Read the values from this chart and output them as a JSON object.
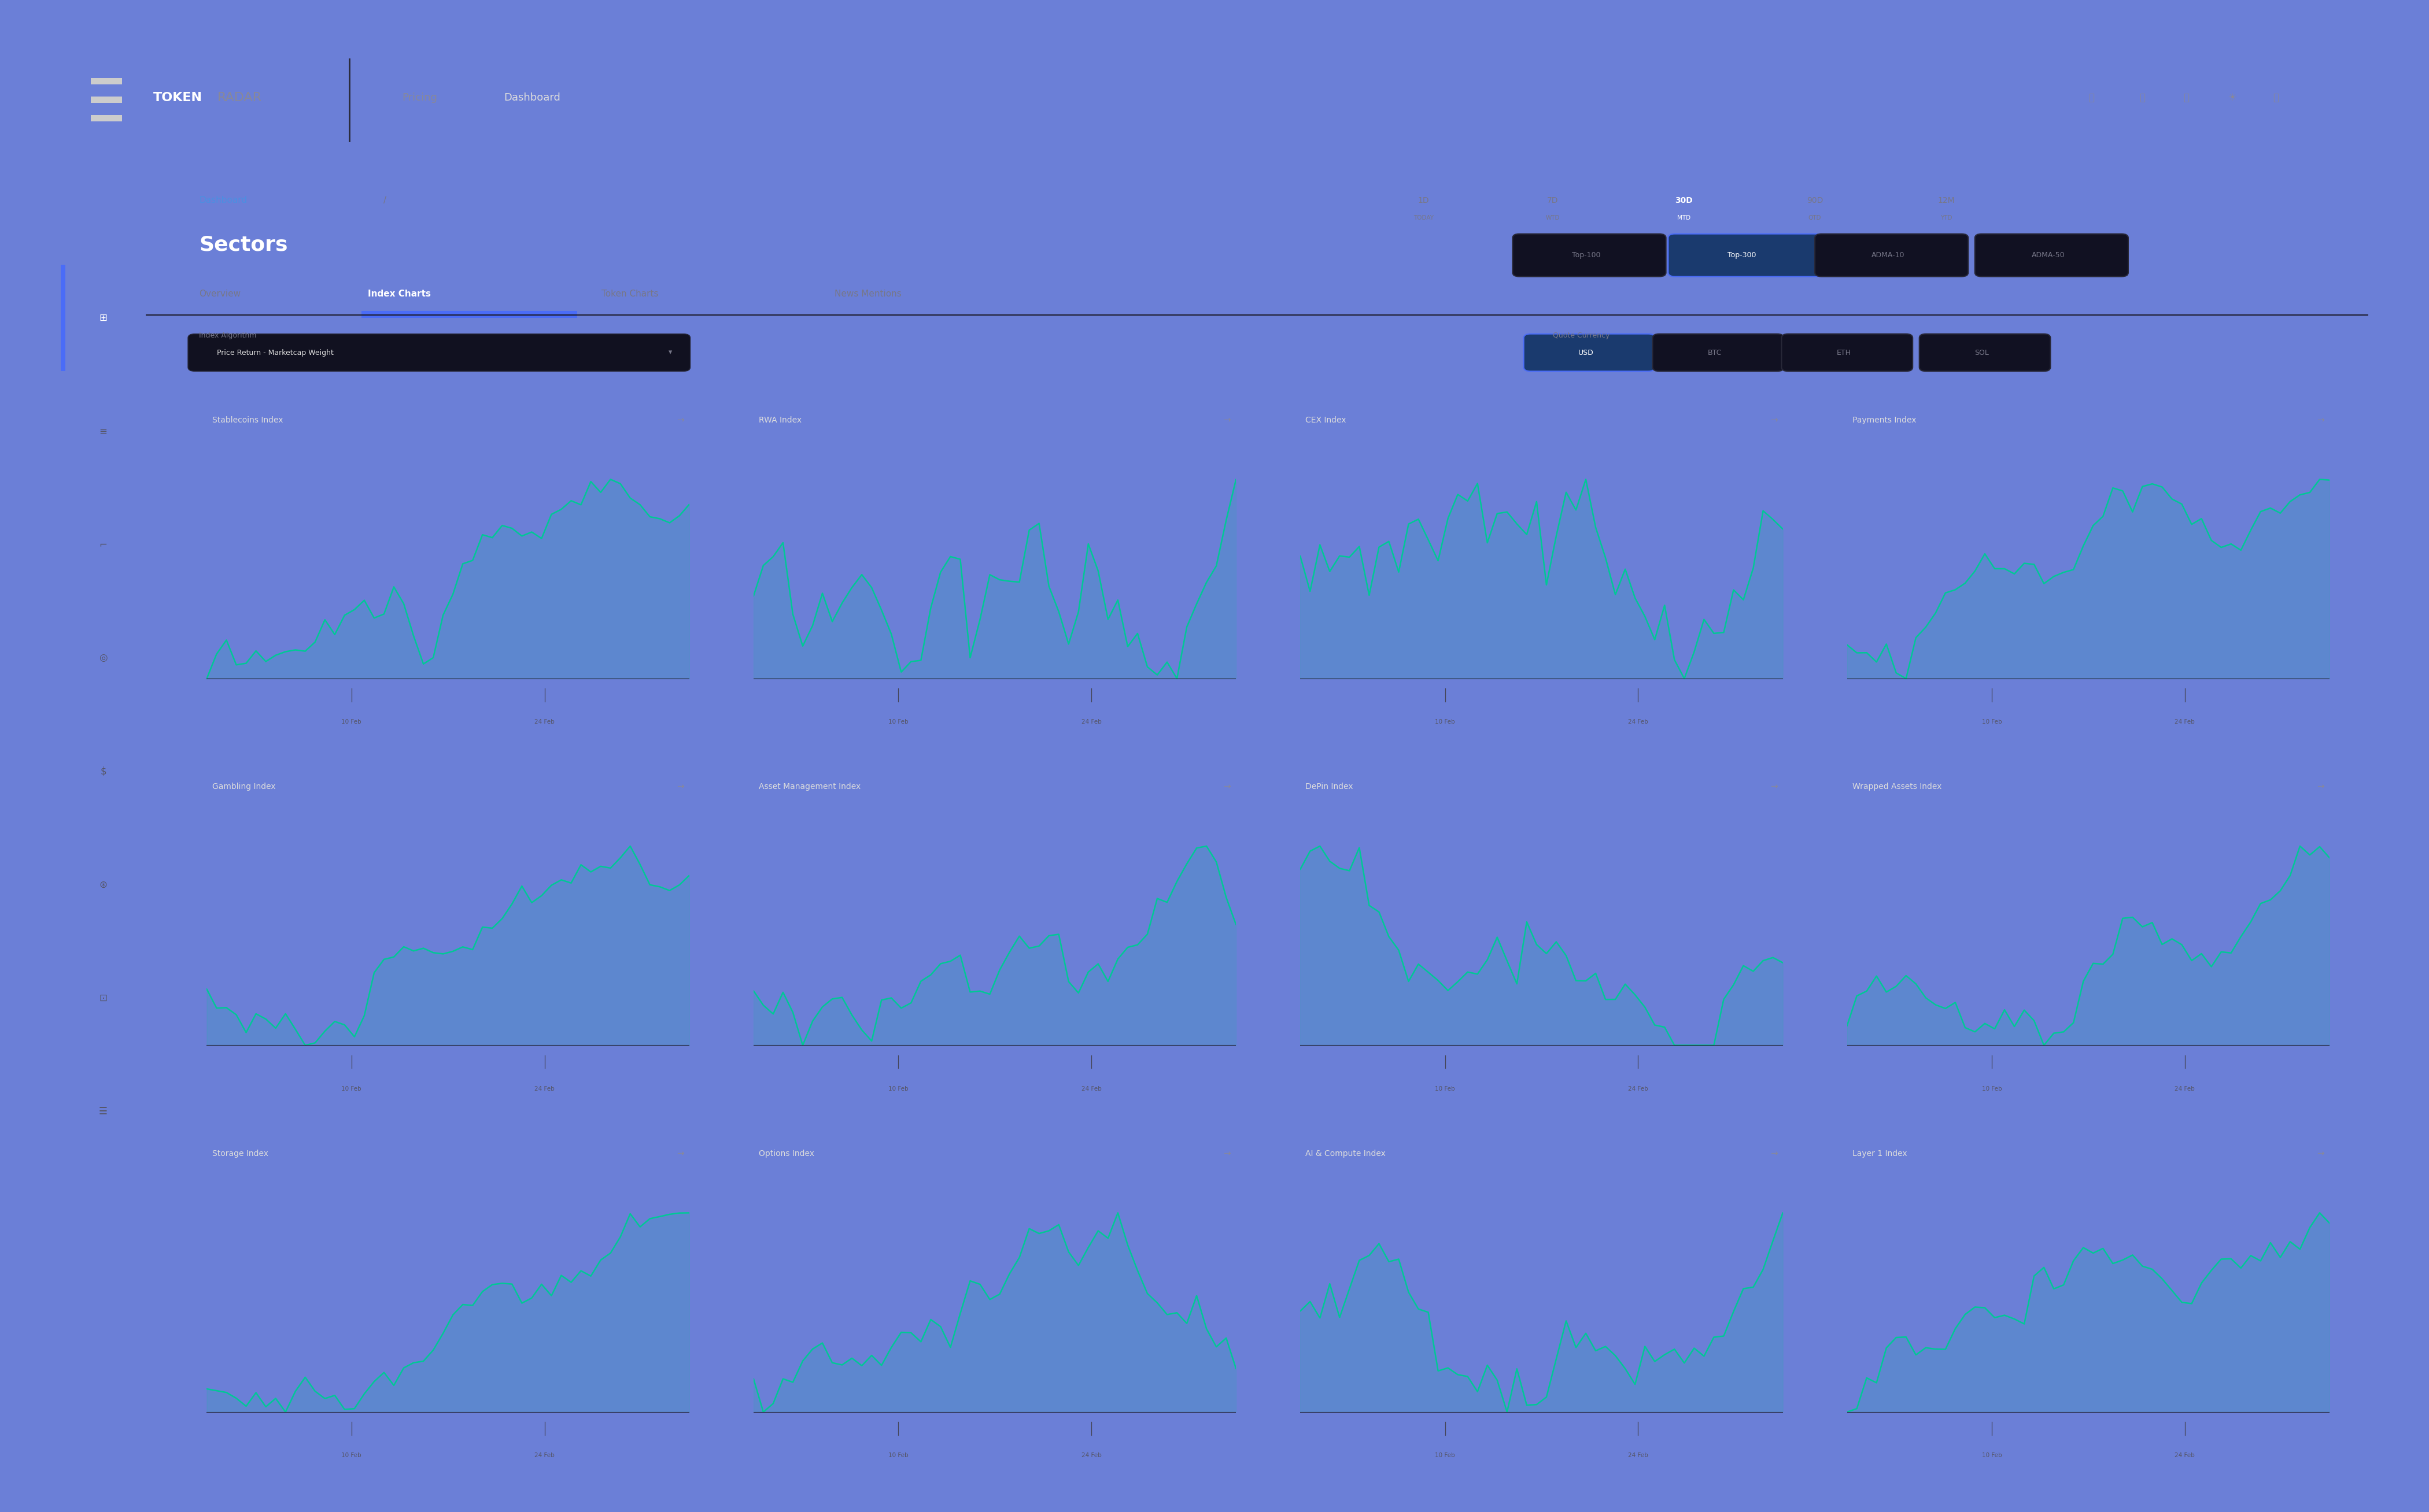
{
  "bg_outer": "#6b7fd7",
  "bg_panel": "#0e0e18",
  "bg_navbar": "#0a0a12",
  "bg_sidebar": "#0c0c16",
  "bg_card": "#13131e",
  "bg_card_inner": "#0e0e18",
  "sidebar_accent": "#4a6cf7",
  "text_white": "#ffffff",
  "text_gray": "#777788",
  "text_blue": "#4a90e2",
  "line_color": "#00c896",
  "nav_active_color": "#4a6cf7",
  "card_border_color": "#1e1e30",
  "tab_line_color": "#1e1e30",
  "breadcrumb": "Dashboard",
  "slash": "/",
  "page_title": "Sectors",
  "nav_items": [
    "Overview",
    "Index Charts",
    "Token Charts",
    "News Mentions"
  ],
  "nav_active": 1,
  "time_buttons": [
    [
      "1D",
      "TODAY"
    ],
    [
      "7D",
      "WTD"
    ],
    [
      "30D",
      "MTD"
    ],
    [
      "90D",
      "QTD"
    ],
    [
      "12M",
      "YTD"
    ]
  ],
  "time_active": 2,
  "filter_buttons": [
    "Top-100",
    "Top-300",
    "ADMA-10",
    "ADMA-50"
  ],
  "filter_active": 1,
  "algo_label": "Index Algorithm",
  "algo_value": "Price Return - Marketcap Weight",
  "quote_label": "Quote Currency",
  "quote_buttons": [
    "USD",
    "BTC",
    "ETH",
    "SOL"
  ],
  "quote_active": 0,
  "sectors": [
    {
      "name": "Stablecoins Index",
      "row": 0,
      "col": 0
    },
    {
      "name": "RWA Index",
      "row": 0,
      "col": 1
    },
    {
      "name": "CEX Index",
      "row": 0,
      "col": 2
    },
    {
      "name": "Payments Index",
      "row": 0,
      "col": 3
    },
    {
      "name": "Gambling Index",
      "row": 1,
      "col": 0
    },
    {
      "name": "Asset Management Index",
      "row": 1,
      "col": 1
    },
    {
      "name": "DePin Index",
      "row": 1,
      "col": 2
    },
    {
      "name": "Wrapped Assets Index",
      "row": 1,
      "col": 3
    },
    {
      "name": "Storage Index",
      "row": 2,
      "col": 0
    },
    {
      "name": "Options Index",
      "row": 2,
      "col": 1
    },
    {
      "name": "AI & Compute Index",
      "row": 2,
      "col": 2
    },
    {
      "name": "Layer 1 Index",
      "row": 2,
      "col": 3
    }
  ],
  "chart_seeds": [
    10,
    20,
    30,
    40,
    50,
    60,
    70,
    80,
    90,
    100,
    110,
    120
  ],
  "chart_trends": [
    0.4,
    0.5,
    0.3,
    0.6,
    0.35,
    0.55,
    0.4,
    0.5,
    0.3,
    0.45,
    0.5,
    0.4
  ],
  "chart_vols": [
    0.08,
    0.12,
    0.1,
    0.09,
    0.11,
    0.13,
    0.1,
    0.09,
    0.1,
    0.11,
    0.12,
    0.09
  ]
}
